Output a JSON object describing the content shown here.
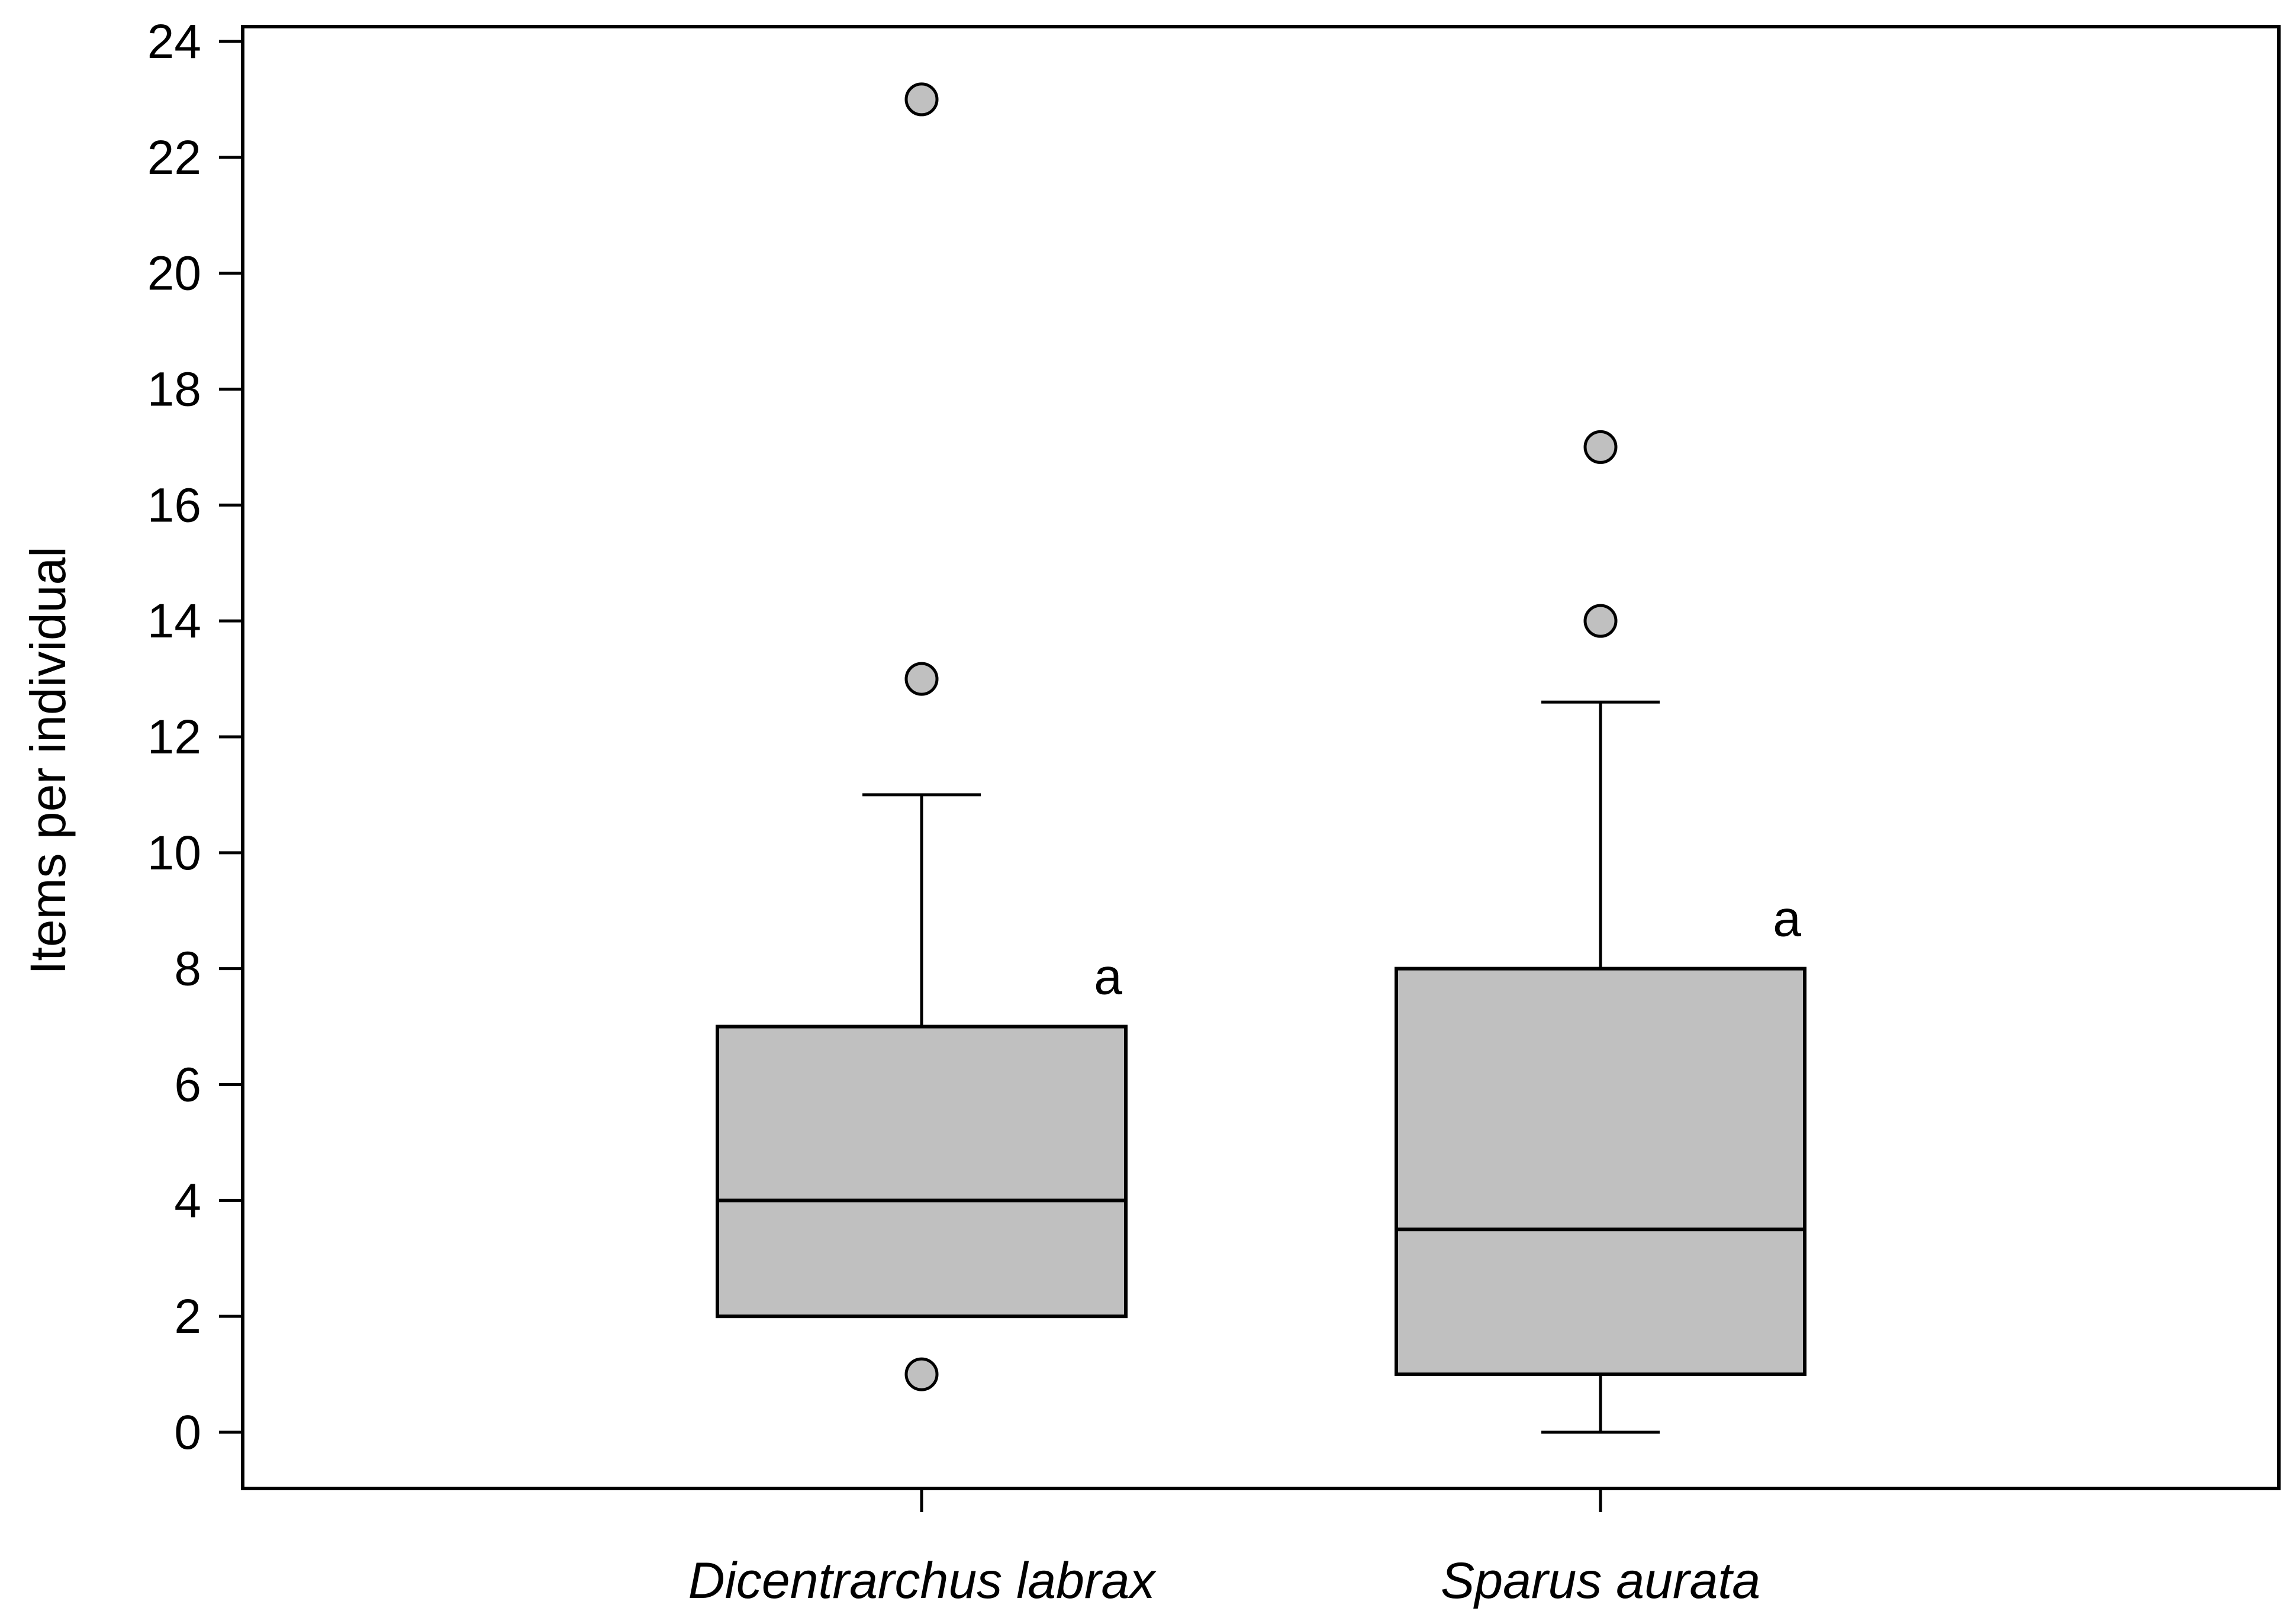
{
  "chart_data": {
    "type": "box",
    "title": "",
    "xlabel": "",
    "ylabel": "Items per individual",
    "ylim": [
      -1,
      24.3
    ],
    "yticks": [
      0,
      2,
      4,
      6,
      8,
      10,
      12,
      14,
      16,
      18,
      20,
      22,
      24
    ],
    "grid": false,
    "legend": "none",
    "colors": {
      "box_fill": "#c0c0c0",
      "outlier_fill": "#c0c0c0",
      "stroke": "#000000"
    },
    "categories": [
      "Dicentrarchus labrax",
      "Sparus aurata"
    ],
    "boxes": [
      {
        "category": "Dicentrarchus labrax",
        "whisker_low": 2,
        "q1": 2,
        "median": 4,
        "q3": 7,
        "whisker_high": 11,
        "outliers": [
          1,
          13,
          23
        ],
        "significance_letter": "a"
      },
      {
        "category": "Sparus aurata",
        "whisker_low": 0,
        "q1": 1,
        "median": 3.5,
        "q3": 8,
        "whisker_high": 12.6,
        "outliers": [
          14,
          17
        ],
        "significance_letter": "a"
      }
    ]
  }
}
